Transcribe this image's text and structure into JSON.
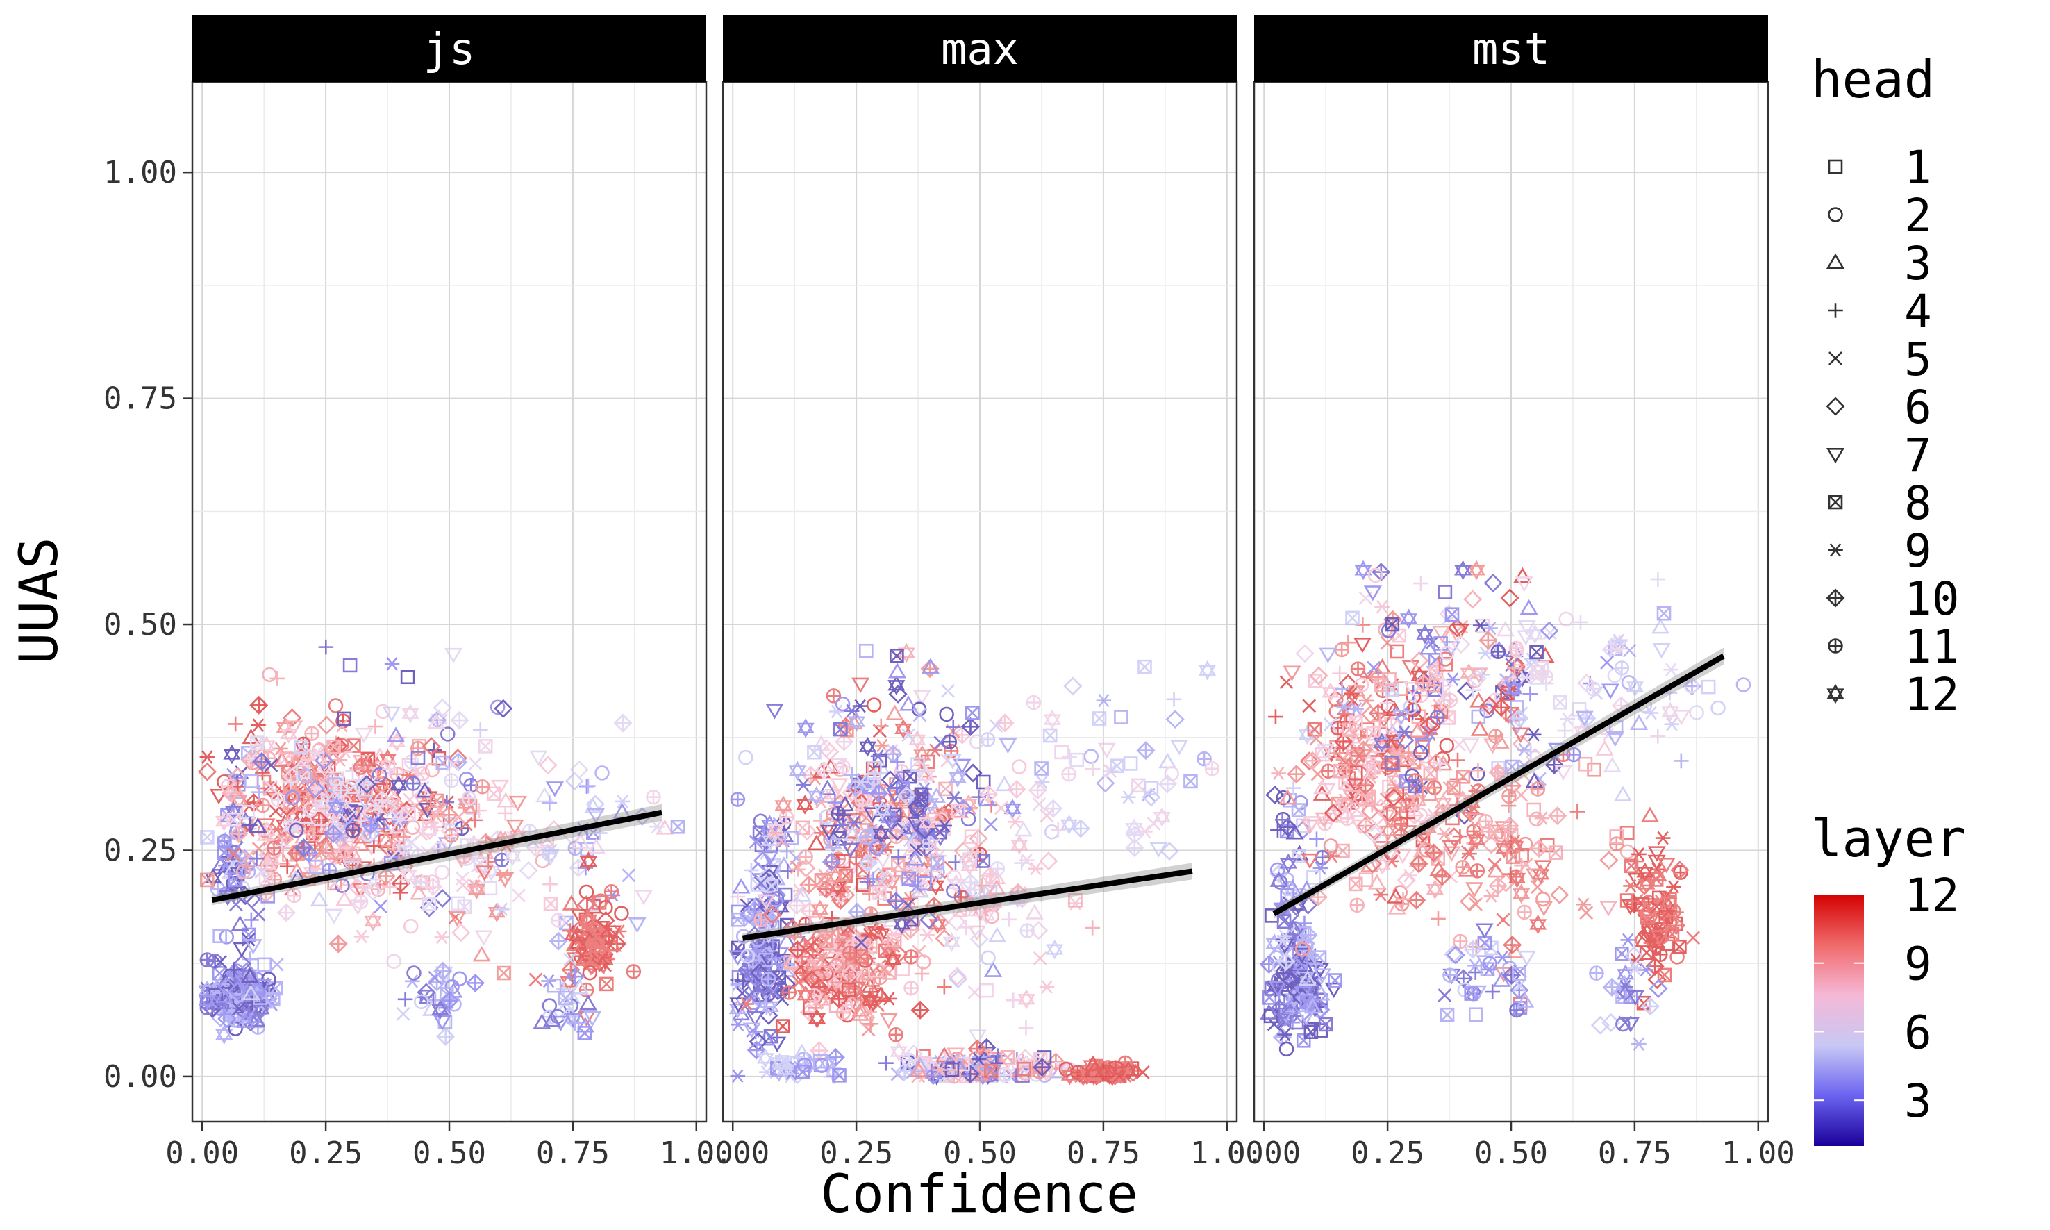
{
  "chart_data": {
    "type": "scatter",
    "facets": [
      "js",
      "max",
      "mst"
    ],
    "xlabel": "Confidence",
    "ylabel": "UUAS",
    "xlim": [
      -0.02,
      1.02
    ],
    "ylim": [
      -0.05,
      1.1
    ],
    "x_ticks": [
      0.0,
      0.25,
      0.5,
      0.75,
      1.0
    ],
    "x_tick_labels": [
      "0.00",
      "0.25",
      "0.50",
      "0.75",
      "1.00"
    ],
    "y_ticks": [
      0.0,
      0.25,
      0.5,
      0.75,
      1.0
    ],
    "y_tick_labels": [
      "0.00",
      "0.25",
      "0.50",
      "0.75",
      "1.00"
    ],
    "grid": true,
    "legend_placement": "right",
    "shape_legend": {
      "title": "head",
      "entries": [
        {
          "label": "1",
          "shape": "square"
        },
        {
          "label": "2",
          "shape": "circle"
        },
        {
          "label": "3",
          "shape": "triangle-up"
        },
        {
          "label": "4",
          "shape": "plus"
        },
        {
          "label": "5",
          "shape": "cross"
        },
        {
          "label": "6",
          "shape": "diamond"
        },
        {
          "label": "7",
          "shape": "triangle-down"
        },
        {
          "label": "8",
          "shape": "square-cross"
        },
        {
          "label": "9",
          "shape": "asterisk"
        },
        {
          "label": "10",
          "shape": "diamond-plus"
        },
        {
          "label": "11",
          "shape": "circle-plus"
        },
        {
          "label": "12",
          "shape": "triangle-star"
        }
      ]
    },
    "color_legend": {
      "title": "layer",
      "range": [
        1,
        12
      ],
      "ticks": [
        3,
        6,
        9,
        12
      ],
      "tick_labels": [
        "3",
        "6",
        "9",
        "12"
      ],
      "colors": [
        "#1a0099",
        "#6b63f0",
        "#c8c8f4",
        "#f5b8d6",
        "#f06a6a",
        "#d40000"
      ]
    },
    "trend_lines": [
      {
        "facet": "js",
        "x": [
          0.02,
          0.93
        ],
        "y": [
          0.195,
          0.292
        ]
      },
      {
        "facet": "max",
        "x": [
          0.02,
          0.93
        ],
        "y": [
          0.153,
          0.227
        ]
      },
      {
        "facet": "mst",
        "x": [
          0.02,
          0.93
        ],
        "y": [
          0.18,
          0.465
        ]
      }
    ],
    "clusters": {
      "js": [
        {
          "cx": 0.08,
          "cy": 0.09,
          "sx": 0.035,
          "sy": 0.02,
          "n": 140,
          "layer": [
            1,
            4
          ]
        },
        {
          "cx": 0.07,
          "cy": 0.24,
          "sx": 0.02,
          "sy": 0.06,
          "n": 55,
          "layer": [
            1,
            5
          ]
        },
        {
          "cx": 0.27,
          "cy": 0.3,
          "sx": 0.11,
          "sy": 0.05,
          "n": 340,
          "layer": [
            8,
            12
          ]
        },
        {
          "cx": 0.32,
          "cy": 0.3,
          "sx": 0.14,
          "sy": 0.06,
          "n": 150,
          "layer": [
            1,
            7
          ]
        },
        {
          "cx": 0.52,
          "cy": 0.24,
          "sx": 0.09,
          "sy": 0.06,
          "n": 90,
          "layer": [
            6,
            11
          ]
        },
        {
          "cx": 0.78,
          "cy": 0.27,
          "sx": 0.07,
          "sy": 0.05,
          "n": 45,
          "layer": [
            3,
            8
          ]
        },
        {
          "cx": 0.79,
          "cy": 0.15,
          "sx": 0.025,
          "sy": 0.028,
          "n": 85,
          "layer": [
            11,
            12
          ]
        },
        {
          "cx": 0.47,
          "cy": 0.09,
          "sx": 0.04,
          "sy": 0.015,
          "n": 30,
          "layer": [
            2,
            5
          ]
        },
        {
          "cx": 0.74,
          "cy": 0.08,
          "sx": 0.025,
          "sy": 0.02,
          "n": 25,
          "layer": [
            2,
            5
          ]
        }
      ],
      "max": [
        {
          "cx": 0.06,
          "cy": 0.11,
          "sx": 0.03,
          "sy": 0.04,
          "n": 120,
          "layer": [
            1,
            4
          ]
        },
        {
          "cx": 0.07,
          "cy": 0.22,
          "sx": 0.025,
          "sy": 0.05,
          "n": 55,
          "layer": [
            1,
            5
          ]
        },
        {
          "cx": 0.22,
          "cy": 0.12,
          "sx": 0.06,
          "sy": 0.04,
          "n": 190,
          "layer": [
            8,
            12
          ]
        },
        {
          "cx": 0.3,
          "cy": 0.27,
          "sx": 0.1,
          "sy": 0.07,
          "n": 240,
          "layer": [
            7,
            12
          ]
        },
        {
          "cx": 0.33,
          "cy": 0.3,
          "sx": 0.1,
          "sy": 0.07,
          "n": 150,
          "layer": [
            1,
            5
          ]
        },
        {
          "cx": 0.55,
          "cy": 0.22,
          "sx": 0.07,
          "sy": 0.08,
          "n": 80,
          "layer": [
            5,
            9
          ]
        },
        {
          "cx": 0.5,
          "cy": 0.01,
          "sx": 0.09,
          "sy": 0.008,
          "n": 140,
          "layer": [
            1,
            11
          ]
        },
        {
          "cx": 0.75,
          "cy": 0.003,
          "sx": 0.035,
          "sy": 0.004,
          "n": 70,
          "layer": [
            11,
            12
          ]
        },
        {
          "cx": 0.78,
          "cy": 0.34,
          "sx": 0.09,
          "sy": 0.05,
          "n": 45,
          "layer": [
            4,
            7
          ]
        },
        {
          "cx": 0.15,
          "cy": 0.01,
          "sx": 0.04,
          "sy": 0.008,
          "n": 25,
          "layer": [
            3,
            5
          ]
        }
      ],
      "mst": [
        {
          "cx": 0.07,
          "cy": 0.1,
          "sx": 0.03,
          "sy": 0.025,
          "n": 120,
          "layer": [
            1,
            4
          ]
        },
        {
          "cx": 0.06,
          "cy": 0.22,
          "sx": 0.025,
          "sy": 0.06,
          "n": 60,
          "layer": [
            1,
            5
          ]
        },
        {
          "cx": 0.22,
          "cy": 0.34,
          "sx": 0.07,
          "sy": 0.07,
          "n": 220,
          "layer": [
            8,
            12
          ]
        },
        {
          "cx": 0.38,
          "cy": 0.43,
          "sx": 0.12,
          "sy": 0.06,
          "n": 180,
          "layer": [
            1,
            12
          ]
        },
        {
          "cx": 0.48,
          "cy": 0.25,
          "sx": 0.1,
          "sy": 0.05,
          "n": 110,
          "layer": [
            9,
            11
          ]
        },
        {
          "cx": 0.66,
          "cy": 0.43,
          "sx": 0.12,
          "sy": 0.05,
          "n": 70,
          "layer": [
            3,
            7
          ]
        },
        {
          "cx": 0.79,
          "cy": 0.18,
          "sx": 0.025,
          "sy": 0.035,
          "n": 85,
          "layer": [
            11,
            12
          ]
        },
        {
          "cx": 0.44,
          "cy": 0.11,
          "sx": 0.05,
          "sy": 0.025,
          "n": 35,
          "layer": [
            2,
            5
          ]
        },
        {
          "cx": 0.74,
          "cy": 0.09,
          "sx": 0.025,
          "sy": 0.025,
          "n": 25,
          "layer": [
            2,
            5
          ]
        }
      ]
    }
  }
}
